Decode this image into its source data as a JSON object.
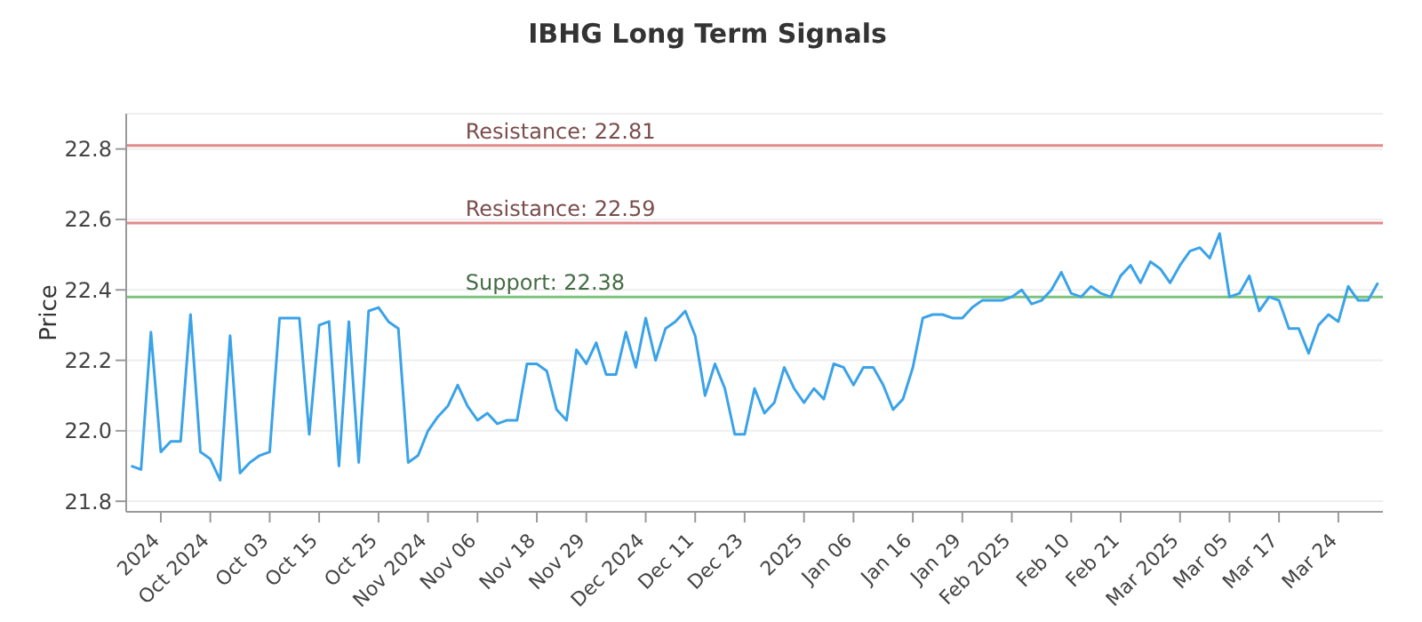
{
  "chart_data": {
    "type": "line",
    "title": "IBHG Long Term Signals",
    "ylabel": "Price",
    "categories": [
      null,
      null,
      null,
      "2024",
      null,
      null,
      null,
      null,
      "Oct 2024",
      null,
      null,
      null,
      null,
      null,
      "Oct 03",
      null,
      null,
      null,
      null,
      "Oct 15",
      null,
      null,
      null,
      null,
      null,
      "Oct 25",
      null,
      null,
      null,
      null,
      "Nov 2024",
      null,
      null,
      null,
      null,
      "Nov 06",
      null,
      null,
      null,
      null,
      null,
      "Nov 18",
      null,
      null,
      null,
      null,
      "Nov 29",
      null,
      null,
      null,
      null,
      null,
      "Dec 2024",
      null,
      null,
      null,
      null,
      "Dec 11",
      null,
      null,
      null,
      null,
      "Dec 23",
      null,
      null,
      null,
      null,
      null,
      "2025",
      null,
      null,
      null,
      null,
      "Jan 06",
      null,
      null,
      null,
      null,
      null,
      "Jan 16",
      null,
      null,
      null,
      null,
      "Jan 29",
      null,
      null,
      null,
      null,
      "Feb 2025",
      null,
      null,
      null,
      null,
      null,
      "Feb 10",
      null,
      null,
      null,
      null,
      "Feb 21",
      null,
      null,
      null,
      null,
      null,
      "Mar 2025",
      null,
      null,
      null,
      null,
      "Mar 05",
      null,
      null,
      null,
      null,
      "Mar 17",
      null,
      null,
      null,
      null,
      null,
      "Mar 24",
      null,
      null,
      null,
      null
    ],
    "series": [
      {
        "color": "#3aa3e8",
        "values": [
          21.9,
          21.89,
          22.28,
          21.94,
          21.97,
          21.97,
          22.33,
          21.94,
          21.92,
          21.86,
          22.27,
          21.88,
          21.91,
          21.93,
          21.94,
          22.32,
          22.32,
          22.32,
          21.99,
          22.3,
          22.31,
          21.9,
          22.31,
          21.91,
          22.34,
          22.35,
          22.31,
          22.29,
          21.91,
          21.93,
          22.0,
          22.04,
          22.07,
          22.13,
          22.07,
          22.03,
          22.05,
          22.02,
          22.03,
          22.03,
          22.19,
          22.19,
          22.17,
          22.06,
          22.03,
          22.23,
          22.19,
          22.25,
          22.16,
          22.16,
          22.28,
          22.18,
          22.32,
          22.2,
          22.29,
          22.31,
          22.34,
          22.27,
          22.1,
          22.19,
          22.12,
          21.99,
          21.99,
          22.12,
          22.05,
          22.08,
          22.18,
          22.12,
          22.08,
          22.12,
          22.09,
          22.19,
          22.18,
          22.13,
          22.18,
          22.18,
          22.13,
          22.06,
          22.09,
          22.18,
          22.32,
          22.33,
          22.33,
          22.32,
          22.32,
          22.35,
          22.37,
          22.37,
          22.37,
          22.38,
          22.4,
          22.36,
          22.37,
          22.4,
          22.45,
          22.39,
          22.38,
          22.41,
          22.39,
          22.38,
          22.44,
          22.47,
          22.42,
          22.48,
          22.46,
          22.42,
          22.47,
          22.51,
          22.52,
          22.49,
          22.56,
          22.38,
          22.39,
          22.44,
          22.34,
          22.38,
          22.37,
          22.29,
          22.29,
          22.22,
          22.3,
          22.33,
          22.31,
          22.41,
          22.37,
          22.37,
          22.42
        ]
      }
    ],
    "ylim": [
      21.77,
      22.9
    ],
    "yticks": [
      21.8,
      {
        "value": 22.0,
        "label": "22.0"
      },
      22.2,
      22.4,
      22.6,
      22.8
    ],
    "grid": "y",
    "legend": false,
    "marker": "none",
    "line_style": "solid",
    "ref_lines": [
      {
        "axis": "y",
        "value": 22.81,
        "label": "Resistance: 22.81",
        "color": "#e08a8a"
      },
      {
        "axis": "y",
        "value": 22.59,
        "label": "Resistance: 22.59",
        "color": "#e08a8a"
      },
      {
        "axis": "y",
        "value": 22.38,
        "label": "Support: 22.38",
        "color": "#7cc47c"
      }
    ]
  }
}
